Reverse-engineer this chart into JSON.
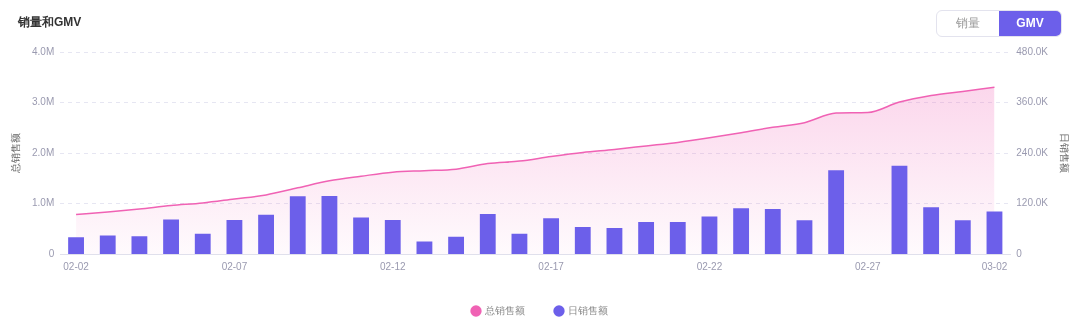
{
  "chart_data": {
    "type": "bar",
    "title": "销量和GMV",
    "annotations": [
      "销量",
      "GMV"
    ],
    "categories": [
      "02-02",
      null,
      null,
      null,
      null,
      "02-07",
      null,
      null,
      null,
      null,
      "02-12",
      null,
      null,
      null,
      null,
      "02-17",
      null,
      null,
      null,
      null,
      "02-22",
      null,
      null,
      null,
      null,
      "02-27",
      null,
      null,
      null,
      "03-02"
    ],
    "series": [
      {
        "name": "总销售额",
        "type": "area",
        "color": "#f062b4",
        "values": [
          780000,
          830000,
          890000,
          960000,
          1010000,
          1090000,
          1170000,
          1310000,
          1450000,
          1540000,
          1620000,
          1650000,
          1680000,
          1790000,
          1840000,
          1930000,
          2010000,
          2070000,
          2140000,
          2210000,
          2300000,
          2400000,
          2510000,
          2600000,
          2790000,
          2800000,
          3010000,
          3140000,
          3220000,
          3300000
        ]
      },
      {
        "name": "日销售额",
        "axis": "y2",
        "color": "#6c5fea",
        "values": [
          40000,
          44000,
          42000,
          82000,
          48000,
          81000,
          93000,
          137000,
          138000,
          87000,
          81000,
          30000,
          41000,
          95000,
          48000,
          85000,
          64000,
          62000,
          76000,
          76000,
          89000,
          109000,
          107000,
          80000,
          199000,
          0,
          210000,
          111000,
          80000,
          101000
        ]
      }
    ],
    "ylabel": "总销售额",
    "y2label": "日销售额",
    "ylim": [
      0,
      4000000
    ],
    "yticks": [
      0,
      {
        "value": 1000000,
        "label": "1.0M"
      },
      {
        "value": 2000000,
        "label": "2.0M"
      },
      {
        "value": 3000000,
        "label": "3.0M"
      },
      {
        "value": 4000000,
        "label": "4.0M"
      }
    ],
    "y2lim": [
      0,
      480000
    ],
    "y2ticks": [
      0,
      {
        "value": 120000,
        "label": "120.0K"
      },
      {
        "value": 240000,
        "label": "240.0K"
      },
      {
        "value": 360000,
        "label": "360.0K"
      },
      {
        "value": 480000,
        "label": "480.0K"
      }
    ],
    "grid": "y",
    "legend": "bottom"
  }
}
